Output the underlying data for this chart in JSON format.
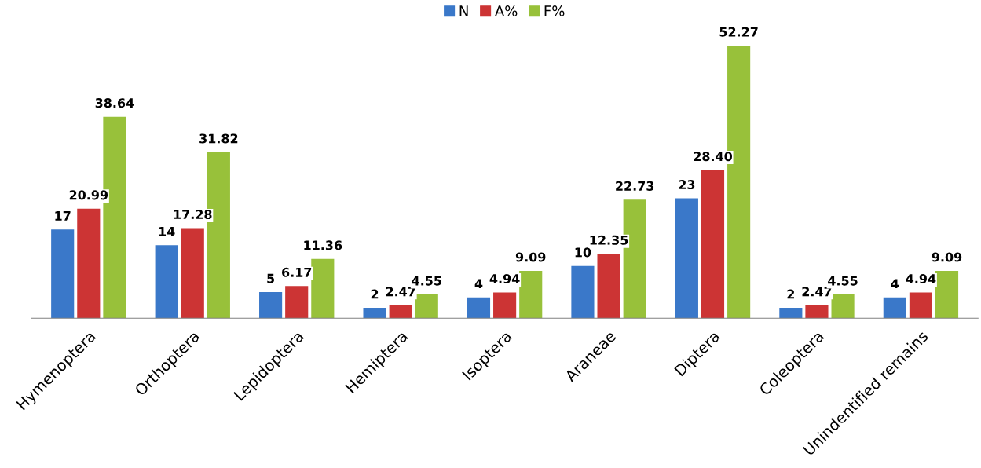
{
  "chart_data": {
    "type": "bar",
    "categories": [
      "Hymenoptera",
      "Orthoptera",
      "Lepidoptera",
      "Hemiptera",
      "Isoptera",
      "Araneae",
      "Diptera",
      "Coleoptera",
      "Unindentified remains"
    ],
    "series": [
      {
        "name": "N",
        "color": "#3a78c9",
        "values": [
          17,
          14,
          5,
          2,
          4,
          10,
          23,
          2,
          4
        ],
        "value_labels": [
          "17",
          "14",
          "5",
          "2",
          "4",
          "10",
          "23",
          "2",
          "4"
        ]
      },
      {
        "name": "A%",
        "color": "#cc3434",
        "values": [
          20.99,
          17.28,
          6.17,
          2.47,
          4.94,
          12.35,
          28.4,
          2.47,
          4.94
        ],
        "value_labels": [
          "20.99",
          "17.28",
          "6.17",
          "2.47",
          "4.94",
          "12.35",
          "28.40",
          "2.47",
          "4.94"
        ]
      },
      {
        "name": "F%",
        "color": "#98c13a",
        "values": [
          38.64,
          31.82,
          11.36,
          4.55,
          9.09,
          22.73,
          52.27,
          4.55,
          9.09
        ],
        "value_labels": [
          "38.64",
          "31.82",
          "11.36",
          "4.55",
          "9.09",
          "22.73",
          "52.27",
          "4.55",
          "9.09"
        ]
      }
    ],
    "legend": "top",
    "grid": false,
    "tick_labels": "x"
  }
}
